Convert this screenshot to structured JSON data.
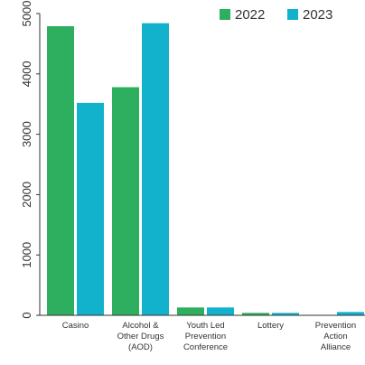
{
  "chart_data": {
    "type": "bar",
    "categories": [
      [
        "Casino"
      ],
      [
        "Alcohol &",
        "Other Drugs",
        "(AOD)"
      ],
      [
        "Youth Led",
        "Prevention",
        "Conference"
      ],
      [
        "Lottery"
      ],
      [
        "Prevention",
        "Action",
        "Alliance"
      ]
    ],
    "series": [
      {
        "name": "2022",
        "color": "#2eaf5f",
        "values": [
          4790,
          3780,
          130,
          40,
          0
        ]
      },
      {
        "name": "2023",
        "color": "#12b2cc",
        "values": [
          3520,
          4840,
          130,
          40,
          55
        ]
      }
    ],
    "ylim": [
      0,
      5000
    ],
    "yticks": [
      0,
      1000,
      2000,
      3000,
      4000,
      5000
    ],
    "ytick_labels": [
      "0",
      "1000",
      "2000",
      "3000",
      "4000",
      "5000"
    ],
    "legend_position": "top-right",
    "grid": false,
    "title": "",
    "xlabel": "",
    "ylabel": ""
  }
}
